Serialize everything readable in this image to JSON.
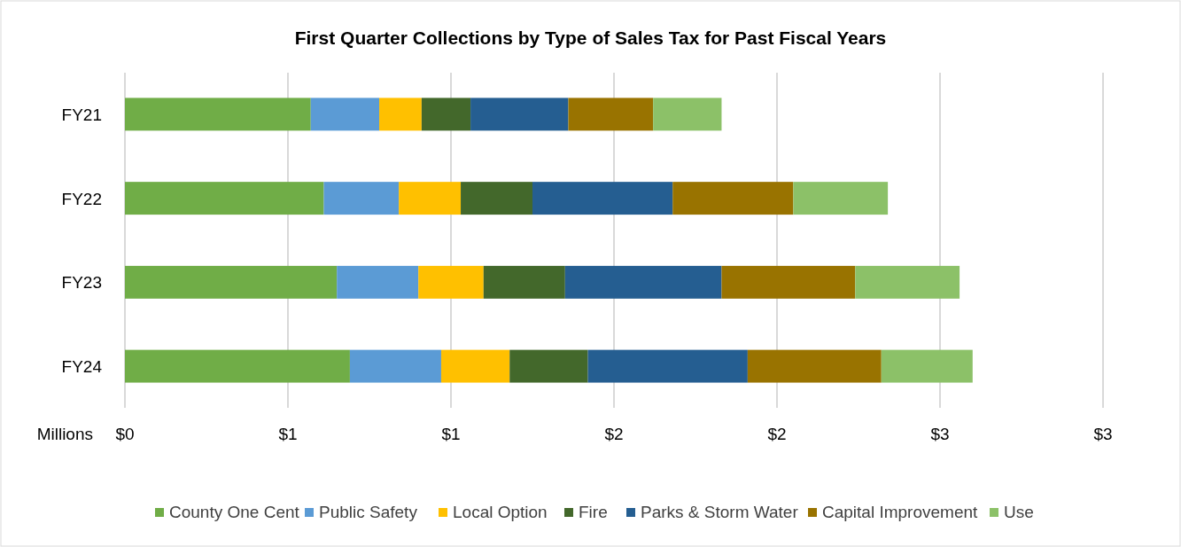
{
  "chart_data": {
    "type": "bar",
    "orientation": "horizontal",
    "stacked": true,
    "title": "First Quarter Collections  by Type of Sales Tax for Past Fiscal Years",
    "xlabel": "Millions",
    "categories": [
      "FY21",
      "FY22",
      "FY23",
      "FY24"
    ],
    "series": [
      {
        "name": "County One Cent",
        "color": "#70ad47",
        "values": [
          0.57,
          0.61,
          0.65,
          0.69
        ]
      },
      {
        "name": "Public Safety",
        "color": "#5b9bd5",
        "values": [
          0.21,
          0.23,
          0.25,
          0.28
        ]
      },
      {
        "name": "Local Option",
        "color": "#ffc000",
        "values": [
          0.13,
          0.19,
          0.2,
          0.21
        ]
      },
      {
        "name": "Fire",
        "color": "#43682b",
        "values": [
          0.15,
          0.22,
          0.25,
          0.24
        ]
      },
      {
        "name": "Parks & Storm Water",
        "color": "#255e91",
        "values": [
          0.3,
          0.43,
          0.48,
          0.49
        ]
      },
      {
        "name": "Capital Improvement",
        "color": "#997300",
        "values": [
          0.26,
          0.37,
          0.41,
          0.41
        ]
      },
      {
        "name": "Use",
        "color": "#8cc168",
        "values": [
          0.21,
          0.29,
          0.32,
          0.28
        ]
      }
    ],
    "xlim": [
      0,
      3
    ],
    "xticks": [
      {
        "value": 0,
        "label": "$0"
      },
      {
        "value": 0.5,
        "label": "$1"
      },
      {
        "value": 1,
        "label": "$1"
      },
      {
        "value": 1.5,
        "label": "$2"
      },
      {
        "value": 2,
        "label": "$2"
      },
      {
        "value": 2.5,
        "label": "$3"
      },
      {
        "value": 3,
        "label": "$3"
      }
    ],
    "grid": "x",
    "legend": "bottom"
  }
}
